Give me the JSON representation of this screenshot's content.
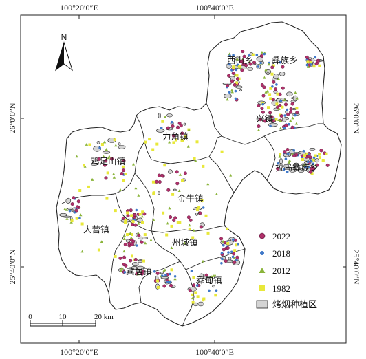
{
  "map": {
    "coords": {
      "top": [
        "100°20′0″E",
        "100°40′0″E"
      ],
      "bottom": [
        "100°20′0″E",
        "100°40′0″E"
      ],
      "left": [
        "26°0′0″N",
        "25°40′0″N"
      ],
      "right": [
        "26°0′0″N",
        "25°40′0″N"
      ]
    },
    "north_label": "N",
    "towns": [
      "西山乡",
      "彝族乡",
      "兴镇",
      "力角镇",
      "鸡足山镇",
      "拉乌彝族乡",
      "金牛镇",
      "大营镇",
      "州城镇",
      "宾居镇",
      "乔甸镇"
    ],
    "legend": {
      "items": [
        {
          "label": "2022",
          "color": "#b0306a"
        },
        {
          "label": "2018",
          "color": "#3f78c8"
        },
        {
          "label": "2012",
          "color": "#8ab43a"
        },
        {
          "label": "1982",
          "color": "#e8e83a"
        },
        {
          "label": "烤烟种植区",
          "color": "#d4d4d4"
        }
      ]
    },
    "scale": {
      "ticks": [
        "0",
        "10",
        "20 km"
      ]
    }
  }
}
